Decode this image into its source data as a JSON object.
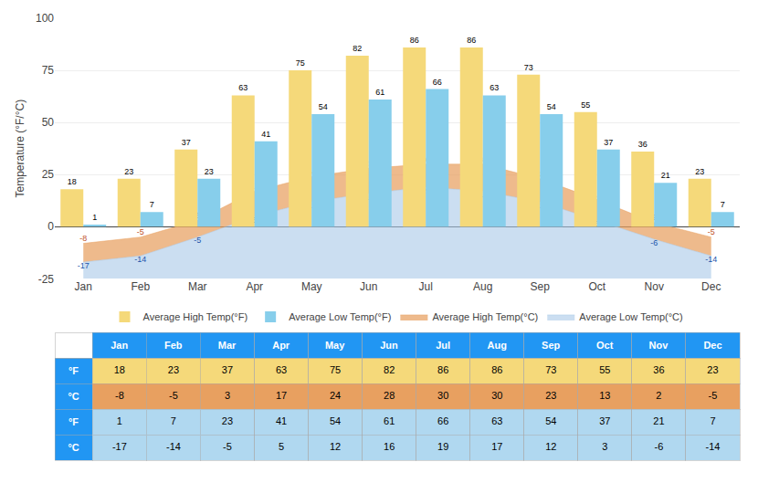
{
  "chart_data": {
    "type": "bar",
    "y_label": "Temperature (°F/°C)",
    "categories": [
      "Jan",
      "Feb",
      "Mar",
      "Apr",
      "May",
      "Jun",
      "Jul",
      "Aug",
      "Sep",
      "Oct",
      "Nov",
      "Dec"
    ],
    "series": [
      {
        "name": "Average High Temp(°F)",
        "type": "bar",
        "color": "#F5D97A",
        "values": [
          18,
          23,
          37,
          63,
          75,
          82,
          86,
          86,
          73,
          55,
          36,
          23
        ]
      },
      {
        "name": "Average Low Temp(°F)",
        "type": "bar",
        "color": "#87CEEB",
        "values": [
          1,
          7,
          23,
          41,
          54,
          61,
          66,
          63,
          54,
          37,
          21,
          7
        ]
      },
      {
        "name": "Average High Temp(°C)",
        "type": "area",
        "color": "#E8A060",
        "label_color": "#C0522A",
        "values": [
          -8,
          -5,
          3,
          17,
          24,
          28,
          30,
          30,
          23,
          13,
          2,
          -5
        ]
      },
      {
        "name": "Average Low Temp(°C)",
        "type": "area",
        "color": "#A8C8E8",
        "label_color": "#2255AA",
        "values": [
          -17,
          -14,
          -5,
          5,
          12,
          16,
          19,
          17,
          12,
          3,
          -6,
          -14
        ]
      }
    ],
    "ylim": [
      -25,
      100
    ],
    "yticks": [
      -25,
      0,
      25,
      50,
      75,
      100
    ],
    "grid": true,
    "legend": "bottom",
    "data_labels": true,
    "table": {
      "row_labels": [
        "°F",
        "°C",
        "°F",
        "°C"
      ],
      "rows": [
        [
          18,
          23,
          37,
          63,
          75,
          82,
          86,
          86,
          73,
          55,
          36,
          23
        ],
        [
          -8,
          -5,
          3,
          17,
          24,
          28,
          30,
          30,
          23,
          13,
          2,
          -5
        ],
        [
          1,
          7,
          23,
          41,
          54,
          61,
          66,
          63,
          54,
          37,
          21,
          7
        ],
        [
          -17,
          -14,
          -5,
          5,
          12,
          16,
          19,
          17,
          12,
          3,
          -6,
          -14
        ]
      ],
      "colors": [
        "#F5D97A",
        "#E8A060",
        "#B0D8F0",
        "#B0D8F0"
      ],
      "header_color": "#2196F3"
    }
  }
}
